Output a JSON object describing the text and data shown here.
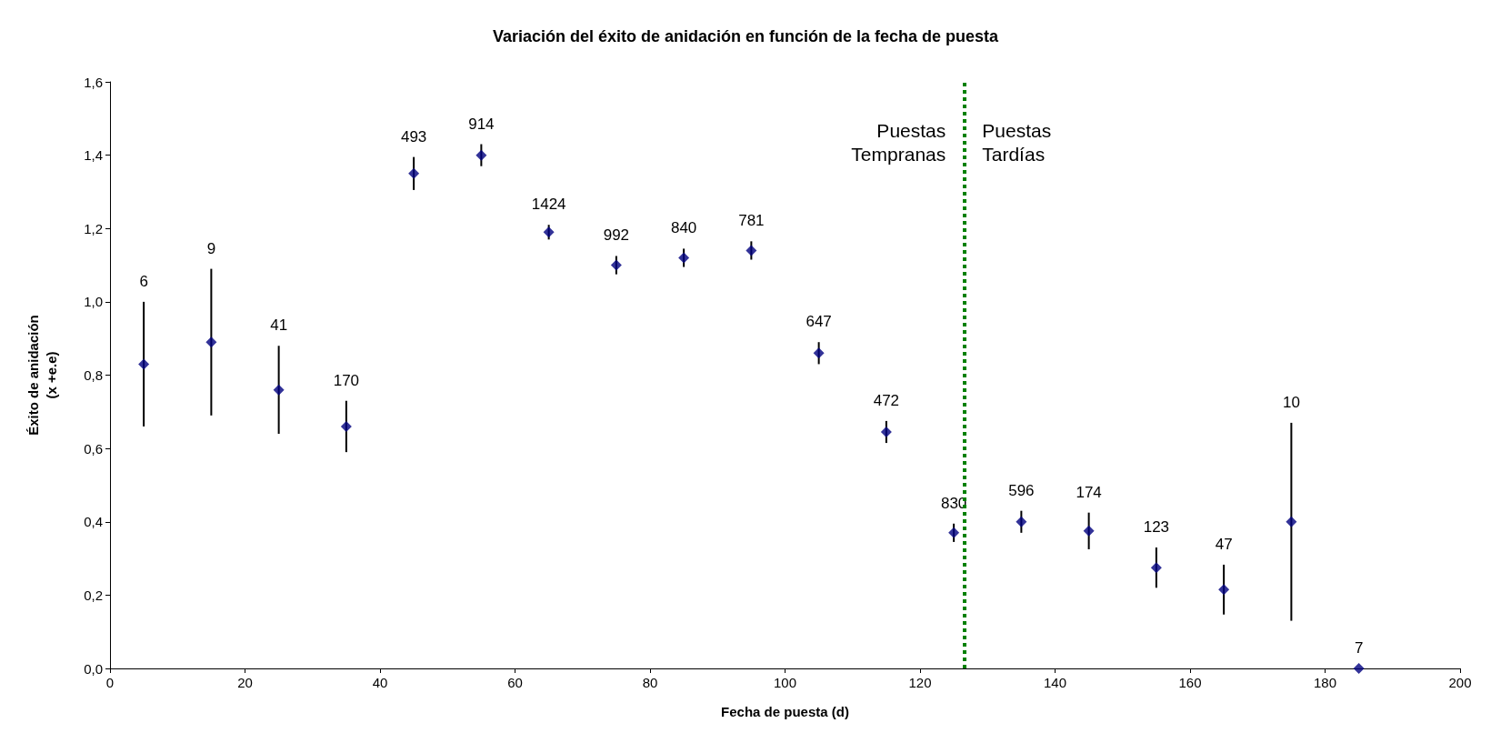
{
  "chart_data": {
    "type": "scatter",
    "title": "Variación del éxito de anidación en función de la fecha de puesta",
    "xlabel": "Fecha de puesta (d)",
    "ylabel": "Éxito de anidación\n(x +e.e)",
    "x": [
      5,
      15,
      25,
      35,
      45,
      55,
      65,
      75,
      85,
      95,
      105,
      115,
      125,
      135,
      145,
      155,
      165,
      175,
      185
    ],
    "series": [
      {
        "color": "#000080",
        "values": [
          0.83,
          0.89,
          0.76,
          0.66,
          1.35,
          1.4,
          1.19,
          1.1,
          1.12,
          1.14,
          0.86,
          0.645,
          0.37,
          0.4,
          0.375,
          0.275,
          0.215,
          0.4,
          0.0
        ],
        "errors": [
          0.17,
          0.2,
          0.12,
          0.07,
          0.045,
          0.03,
          0.02,
          0.025,
          0.025,
          0.025,
          0.03,
          0.03,
          0.025,
          0.03,
          0.05,
          0.055,
          0.068,
          0.27,
          null
        ]
      }
    ],
    "xlim": [
      0,
      200
    ],
    "xticks": [
      0,
      20,
      40,
      60,
      80,
      100,
      120,
      140,
      160,
      180,
      200
    ],
    "ylim": [
      0,
      1.6
    ],
    "yticks": [
      {
        "value": 0,
        "label": "0,0"
      },
      {
        "value": 0.2,
        "label": "0,2"
      },
      {
        "value": 0.4,
        "label": "0,4"
      },
      {
        "value": 0.6,
        "label": "0,6"
      },
      {
        "value": 0.8,
        "label": "0,8"
      },
      {
        "value": 1.0,
        "label": "1,0"
      },
      {
        "value": 1.2,
        "label": "1,2"
      },
      {
        "value": 1.4,
        "label": "1,4"
      },
      {
        "value": 1.6,
        "label": "1,6"
      }
    ],
    "ref_lines": [
      {
        "axis": "x",
        "value": 126.5,
        "color": "#008000",
        "line_style": "dotted"
      }
    ],
    "annotations": [
      "Puestas\nTempranas",
      "Puestas\nTardías",
      "6",
      "9",
      "41",
      "170",
      "493",
      "914",
      "1424",
      "992",
      "840",
      "781",
      "647",
      "472",
      "830",
      "596",
      "174",
      "123",
      "47",
      "10",
      "7"
    ],
    "marker": "diamond",
    "grid": false
  }
}
